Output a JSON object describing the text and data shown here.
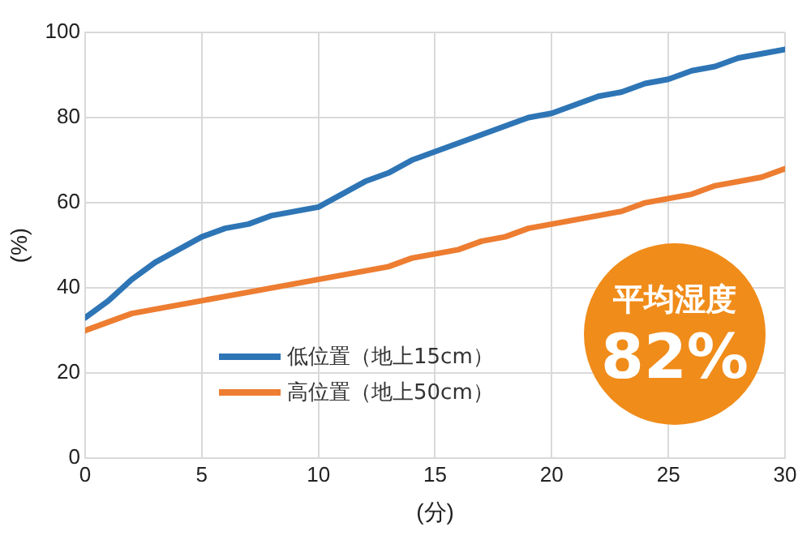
{
  "chart_data": {
    "type": "line",
    "xlabel": "(分)",
    "ylabel": "(%)",
    "x": [
      0,
      1,
      2,
      3,
      4,
      5,
      6,
      7,
      8,
      9,
      10,
      11,
      12,
      13,
      14,
      15,
      16,
      17,
      18,
      19,
      20,
      21,
      22,
      23,
      24,
      25,
      26,
      27,
      28,
      29,
      30
    ],
    "series": [
      {
        "name": "低位置（地上15cm）",
        "color": "#2e75b6",
        "values": [
          33,
          37,
          42,
          46,
          49,
          52,
          54,
          55,
          57,
          58,
          59,
          62,
          65,
          67,
          70,
          72,
          74,
          76,
          78,
          80,
          81,
          83,
          85,
          86,
          88,
          89,
          91,
          92,
          94,
          95,
          96
        ]
      },
      {
        "name": "高位置（地上50cm）",
        "color": "#ed7d31",
        "values": [
          30,
          32,
          34,
          35,
          36,
          37,
          38,
          39,
          40,
          41,
          42,
          43,
          44,
          45,
          47,
          48,
          49,
          51,
          52,
          54,
          55,
          56,
          57,
          58,
          60,
          61,
          62,
          64,
          65,
          66,
          68
        ]
      }
    ],
    "xlim": [
      0,
      30
    ],
    "xticks": [
      0,
      5,
      10,
      15,
      20,
      25,
      30
    ],
    "ylim": [
      0,
      100
    ],
    "yticks": [
      0,
      20,
      40,
      60,
      80,
      100
    ],
    "grid": true,
    "legend": "bottom left",
    "marker": "none",
    "line_style": "solid",
    "annotations": [
      "平均湿度",
      "82%"
    ]
  }
}
